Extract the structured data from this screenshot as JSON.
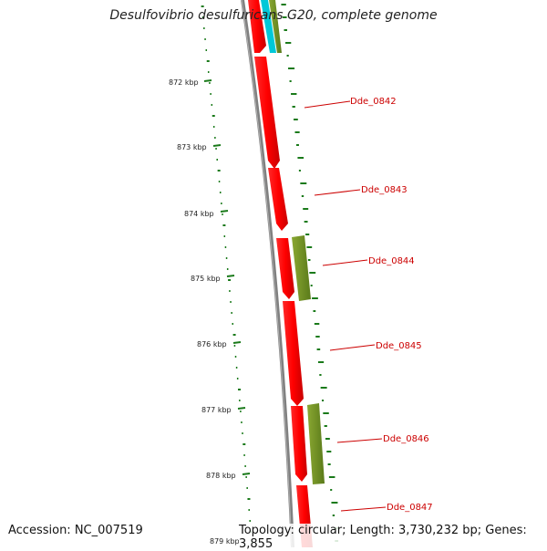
{
  "title": "Desulfovibrio desulfuricans G20, complete genome",
  "footer": {
    "accession": "Accession: NC_007519",
    "stats": "Topology: circular; Length: 3,730,232 bp; Genes: 3,855"
  },
  "ticks": [
    "872 kbp",
    "873 kbp",
    "874 kbp",
    "875 kbp",
    "876 kbp",
    "877 kbp",
    "878 kbp",
    "879 kbp"
  ],
  "genes": [
    "Dde_0842",
    "Dde_0843",
    "Dde_0844",
    "Dde_0845",
    "Dde_0846",
    "Dde_0847"
  ],
  "colors": {
    "cds": "#ff0000",
    "cog": "#6b8e23",
    "cyan": "#00c8d8",
    "backbone": "#808080",
    "gc": "#1a7a1a",
    "label": "#cc0000"
  }
}
